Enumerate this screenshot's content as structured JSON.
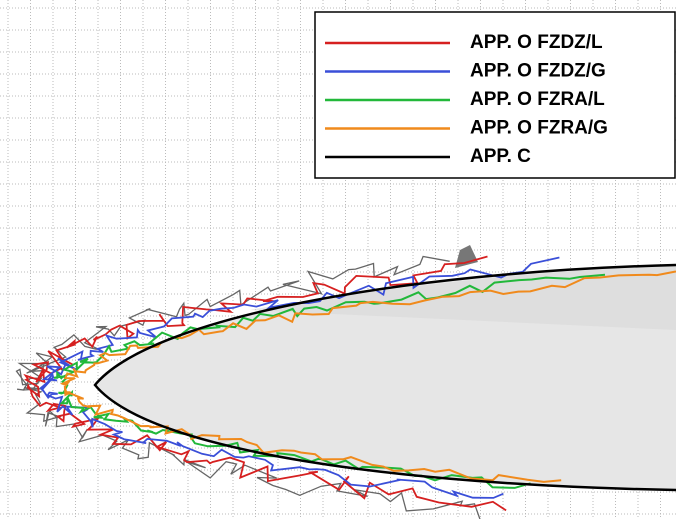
{
  "legend": {
    "items": [
      {
        "label": "APP. O  FZDZ/L",
        "color": "#d62020"
      },
      {
        "label": "APP. O  FZDZ/G",
        "color": "#3a4fd8"
      },
      {
        "label": "APP. O  FZRA/L",
        "color": "#22b83a"
      },
      {
        "label": "APP. O  FZRA/G",
        "color": "#f08a1c"
      },
      {
        "label": "APP. C",
        "color": "#000000"
      }
    ]
  }
}
